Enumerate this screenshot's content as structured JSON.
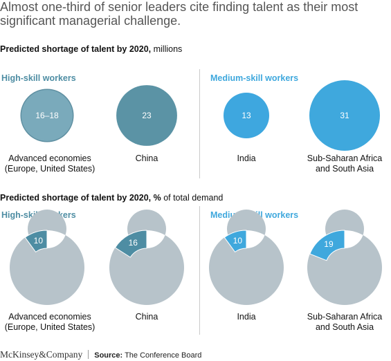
{
  "headline": "Almost one-third of senior leaders cite finding talent as their most significant managerial challenge.",
  "section1": {
    "title_bold": "Predicted shortage of talent by 2020,",
    "title_rest": " millions"
  },
  "section2": {
    "title_bold": "Predicted shortage of talent by 2020, %",
    "title_rest": " of total demand"
  },
  "groups": {
    "high": "High-skill workers",
    "medium": "Medium-skill workers"
  },
  "regions": {
    "advanced_line1": "Advanced economies",
    "advanced_line2": "(Europe, United States)",
    "china": "China",
    "india": "India",
    "ssa_line1": "Sub-Saharan Africa",
    "ssa_line2": "and South Asia"
  },
  "colors": {
    "high_group": "#4e8da3",
    "medium_group": "#3fa8dd",
    "advanced_bubble": "#7aaabb",
    "china_bubble": "#5b93a5",
    "india_bubble": "#3ea7df",
    "ring_remainder": "#b7c3ca"
  },
  "footer": {
    "brand": "McKinsey&Company",
    "source_label": "Source:",
    "source_text": " The Conference Board"
  },
  "chart_data": [
    {
      "type": "bubble",
      "title": "Predicted shortage of talent by 2020, millions",
      "categories": [
        "Advanced economies (Europe, United States)",
        "China",
        "India",
        "Sub-Saharan Africa and South Asia"
      ],
      "groups": [
        "High-skill workers",
        "High-skill workers",
        "Medium-skill workers",
        "Medium-skill workers"
      ],
      "values": [
        17,
        23,
        13,
        31
      ],
      "value_labels": [
        "16–18",
        "23",
        "13",
        "31"
      ]
    },
    {
      "type": "donut",
      "title": "Predicted shortage of talent by 2020, % of total demand",
      "categories": [
        "Advanced economies (Europe, United States)",
        "China",
        "India",
        "Sub-Saharan Africa and South Asia"
      ],
      "groups": [
        "High-skill workers",
        "High-skill workers",
        "Medium-skill workers",
        "Medium-skill workers"
      ],
      "values": [
        10,
        16,
        10,
        19
      ],
      "value_labels": [
        "10",
        "16",
        "10",
        "19"
      ]
    }
  ]
}
